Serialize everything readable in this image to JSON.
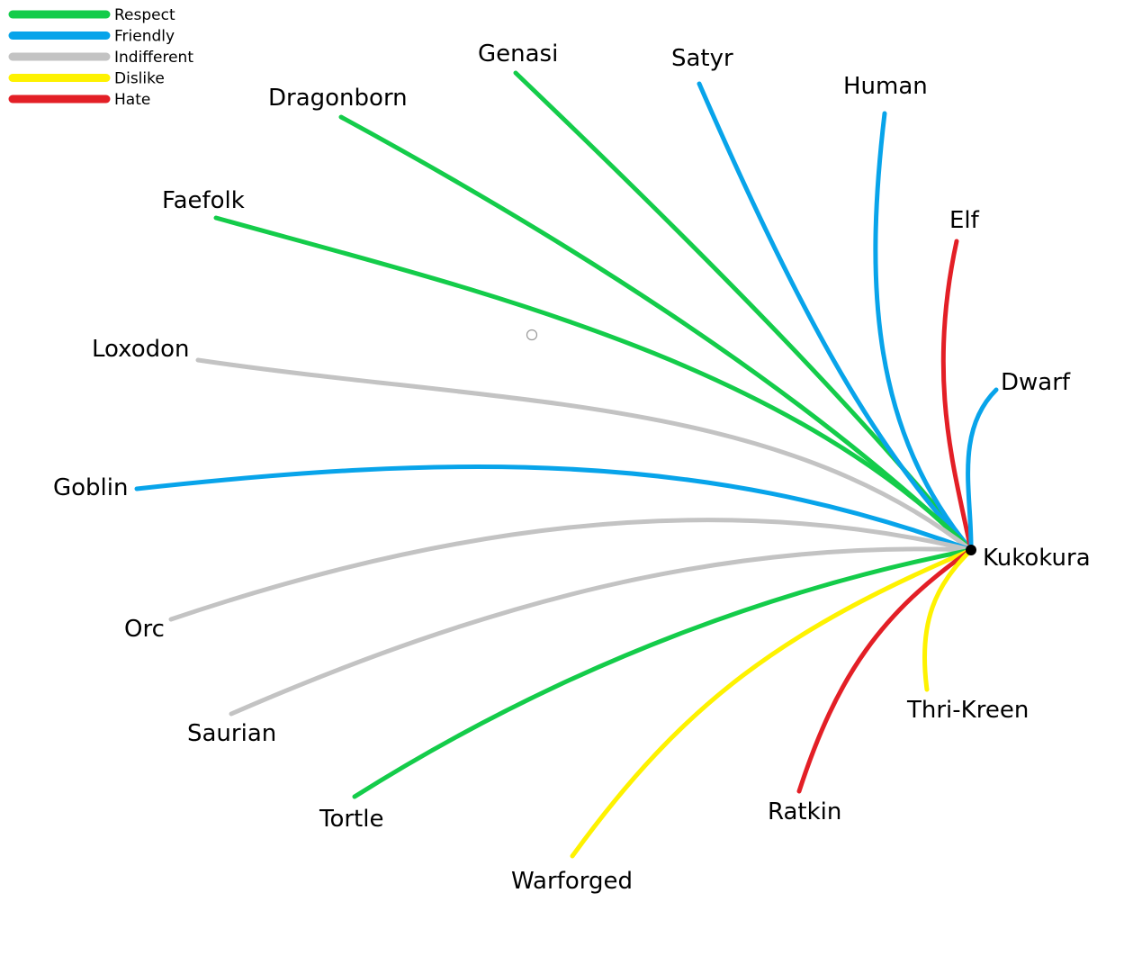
{
  "hub": {
    "label": "Kukokura"
  },
  "legend": [
    {
      "key": "respect",
      "label": "Respect",
      "color": "#14cc4a"
    },
    {
      "key": "friendly",
      "label": "Friendly",
      "color": "#08a4ea"
    },
    {
      "key": "indifferent",
      "label": "Indifferent",
      "color": "#c3c3c3"
    },
    {
      "key": "dislike",
      "label": "Dislike",
      "color": "#fef200"
    },
    {
      "key": "hate",
      "label": "Hate",
      "color": "#e31f26"
    }
  ],
  "relations": [
    {
      "race": "Genasi",
      "attitude": "respect"
    },
    {
      "race": "Satyr",
      "attitude": "friendly"
    },
    {
      "race": "Human",
      "attitude": "friendly"
    },
    {
      "race": "Dragonborn",
      "attitude": "respect"
    },
    {
      "race": "Faefolk",
      "attitude": "respect"
    },
    {
      "race": "Elf",
      "attitude": "hate"
    },
    {
      "race": "Loxodon",
      "attitude": "indifferent"
    },
    {
      "race": "Dwarf",
      "attitude": "friendly"
    },
    {
      "race": "Goblin",
      "attitude": "friendly"
    },
    {
      "race": "Orc",
      "attitude": "indifferent"
    },
    {
      "race": "Saurian",
      "attitude": "indifferent"
    },
    {
      "race": "Tortle",
      "attitude": "respect"
    },
    {
      "race": "Warforged",
      "attitude": "dislike"
    },
    {
      "race": "Ratkin",
      "attitude": "hate"
    },
    {
      "race": "Thri-Kreen",
      "attitude": "dislike"
    }
  ]
}
